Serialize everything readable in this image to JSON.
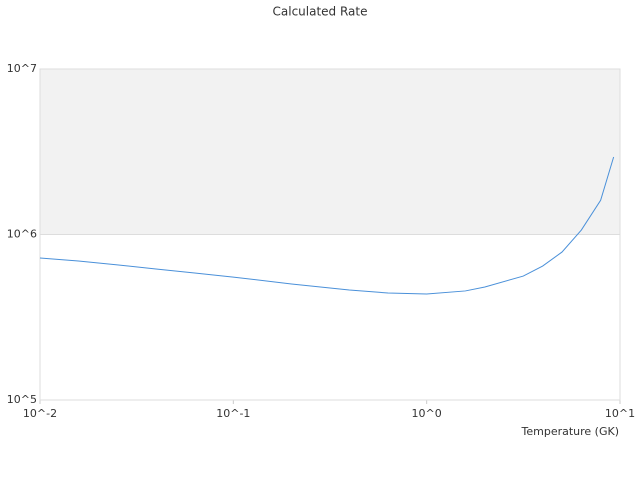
{
  "chart_data": {
    "type": "line",
    "title": "Calculated Rate",
    "x_label": "Temperature (GK)",
    "x": [
      0.01,
      0.0158,
      0.0251,
      0.0398,
      0.0631,
      0.1,
      0.2,
      0.398,
      0.631,
      1.0,
      1.585,
      2.0,
      3.16,
      3.98,
      5.01,
      6.31,
      7.94,
      9.27
    ],
    "series": [
      {
        "name": "Calculated Rate",
        "color": "#4a90d9",
        "values": [
          721000,
          692000,
          655000,
          619000,
          585000,
          553000,
          502000,
          462000,
          443000,
          437000,
          456000,
          482000,
          561000,
          645000,
          783000,
          1064000,
          1610000,
          2940000
        ]
      }
    ],
    "xlim": [
      0.01,
      10
    ],
    "ylim": [
      100000,
      10000000
    ],
    "xticks": [
      {
        "value": 0.01,
        "label": "10^-2"
      },
      {
        "value": 0.1,
        "label": "10^-1"
      },
      {
        "value": 1,
        "label": "10^0"
      },
      {
        "value": 10,
        "label": "10^1"
      }
    ],
    "yticks": [
      {
        "value": 100000,
        "label": "10^5"
      },
      {
        "value": 1000000,
        "label": "10^6"
      },
      {
        "value": 10000000,
        "label": "10^7"
      }
    ],
    "xscale": "log",
    "yscale": "log",
    "grid": true,
    "band_color": "#f2f2f2"
  }
}
